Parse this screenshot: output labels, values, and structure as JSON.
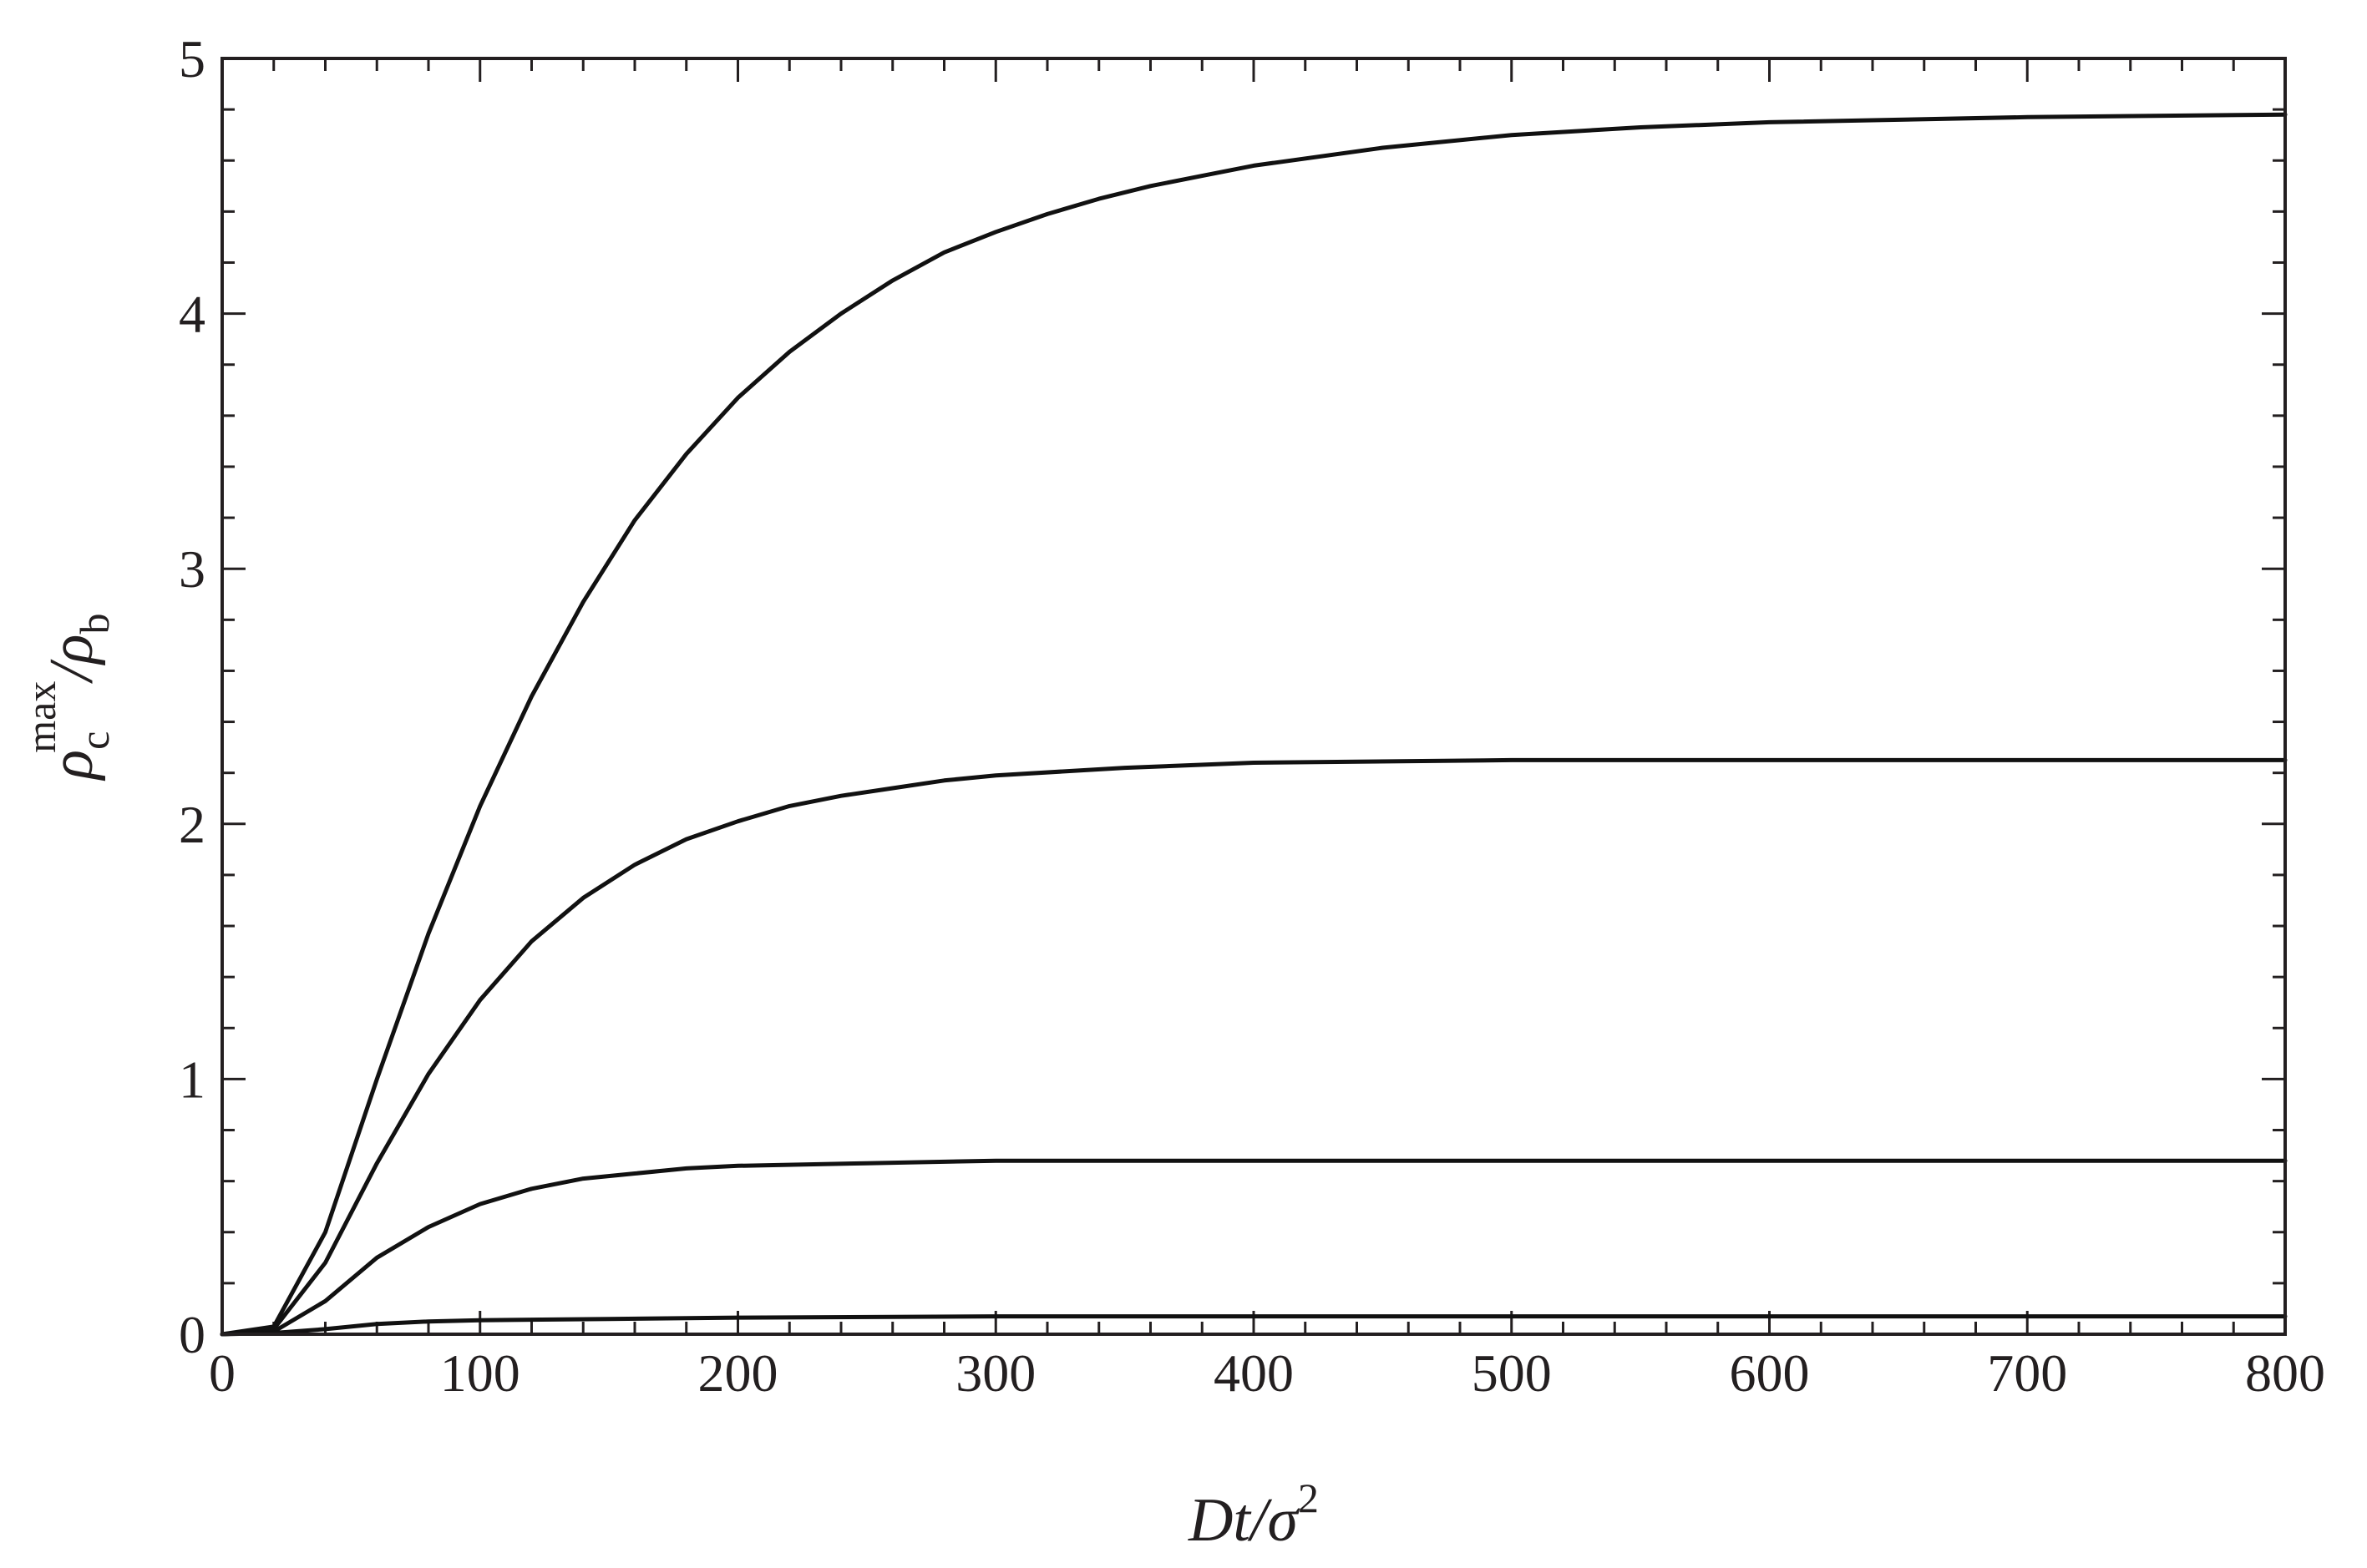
{
  "chart_data": {
    "type": "line",
    "title": "",
    "xlabel": "Dt/σ2",
    "xlabel_parts": {
      "main": "Dt/σ",
      "sup": "2"
    },
    "ylabel": "ρcmax/ρb",
    "ylabel_parts": {
      "rho1": "ρ",
      "sub1": "c",
      "sup1": "max",
      "slash": "/",
      "rho2": "ρ",
      "sub2": "b"
    },
    "xlim": [
      0,
      800
    ],
    "ylim": [
      0,
      5
    ],
    "x_ticks": [
      0,
      100,
      200,
      300,
      400,
      500,
      600,
      700,
      800
    ],
    "y_ticks": [
      0,
      1,
      2,
      3,
      4,
      5
    ],
    "x_tick_labels": [
      "0",
      "100",
      "200",
      "300",
      "400",
      "500",
      "600",
      "700",
      "800"
    ],
    "y_tick_labels": [
      "0",
      "1",
      "2",
      "3",
      "4",
      "5"
    ],
    "x_minor_step": 20,
    "y_minor_step": 0.2,
    "grid": false,
    "legend": "none",
    "line_color": "#111111",
    "series": [
      {
        "x": [
          0,
          20,
          40,
          60,
          80,
          100,
          120,
          140,
          160,
          180,
          200,
          220,
          240,
          260,
          280,
          300,
          320,
          340,
          360,
          380,
          400,
          450,
          500,
          550,
          600,
          700,
          800
        ],
        "values": [
          0,
          0.03,
          0.4,
          1.0,
          1.57,
          2.07,
          2.5,
          2.87,
          3.19,
          3.45,
          3.67,
          3.85,
          4.0,
          4.13,
          4.24,
          4.32,
          4.39,
          4.45,
          4.5,
          4.54,
          4.58,
          4.65,
          4.7,
          4.73,
          4.75,
          4.77,
          4.78
        ]
      },
      {
        "x": [
          0,
          20,
          40,
          60,
          80,
          100,
          120,
          140,
          160,
          180,
          200,
          220,
          240,
          260,
          280,
          300,
          350,
          400,
          500,
          600,
          800
        ],
        "values": [
          0,
          0.02,
          0.28,
          0.67,
          1.02,
          1.31,
          1.54,
          1.71,
          1.84,
          1.94,
          2.01,
          2.07,
          2.11,
          2.14,
          2.17,
          2.19,
          2.22,
          2.24,
          2.25,
          2.25,
          2.25
        ]
      },
      {
        "x": [
          0,
          20,
          40,
          60,
          80,
          100,
          120,
          140,
          160,
          180,
          200,
          250,
          300,
          400,
          600,
          800
        ],
        "values": [
          0,
          0.01,
          0.13,
          0.3,
          0.42,
          0.51,
          0.57,
          0.61,
          0.63,
          0.65,
          0.66,
          0.67,
          0.68,
          0.68,
          0.68,
          0.68
        ]
      },
      {
        "x": [
          0,
          20,
          40,
          60,
          80,
          100,
          150,
          200,
          300,
          500,
          800
        ],
        "values": [
          0,
          0.005,
          0.02,
          0.04,
          0.05,
          0.055,
          0.06,
          0.065,
          0.07,
          0.07,
          0.07
        ]
      }
    ]
  }
}
